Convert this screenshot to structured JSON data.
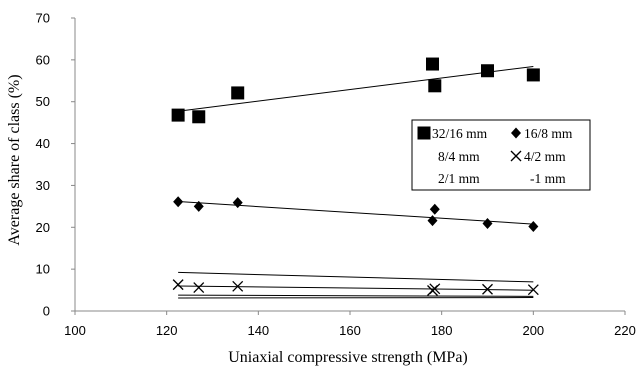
{
  "chart_data": {
    "type": "scatter",
    "xlabel": "Uniaxial compressive strength (MPa)",
    "ylabel": "Average share of class (%)",
    "xlim": [
      100,
      220
    ],
    "ylim": [
      0,
      70
    ],
    "x_ticks": [
      100,
      120,
      140,
      160,
      180,
      200,
      220
    ],
    "y_ticks": [
      0,
      10,
      20,
      30,
      40,
      50,
      60,
      70
    ],
    "x": [
      122.5,
      127,
      135.5,
      178,
      178.5,
      190,
      200
    ],
    "series": [
      {
        "name": "32/16 mm",
        "marker": "square",
        "values": [
          46.8,
          46.4,
          52.1,
          59.0,
          53.8,
          57.4,
          56.4
        ]
      },
      {
        "name": "16/8 mm",
        "marker": "diamond",
        "values": [
          26.1,
          25.0,
          25.9,
          21.6,
          24.3,
          20.9,
          20.2
        ]
      },
      {
        "name": "8/4 mm",
        "marker": "dash",
        "values": [
          9.3,
          9.0,
          8.8,
          7.8,
          7.5,
          7.2,
          6.9
        ]
      },
      {
        "name": "4/2 mm",
        "marker": "x",
        "values": [
          6.3,
          5.6,
          5.9,
          4.9,
          5.3,
          5.2,
          5.1
        ]
      },
      {
        "name": "2/1 mm",
        "marker": "dash",
        "values": [
          3.8,
          3.8,
          3.7,
          3.6,
          3.6,
          3.5,
          3.5
        ]
      },
      {
        "name": "-1 mm",
        "marker": "dash",
        "values": [
          3.1,
          3.1,
          3.1,
          3.2,
          3.2,
          3.2,
          3.2
        ]
      }
    ],
    "trendlines": "linear",
    "grid": false,
    "legend_position": "right"
  },
  "colors": {
    "ink": "#000000",
    "axis": "#888888"
  }
}
